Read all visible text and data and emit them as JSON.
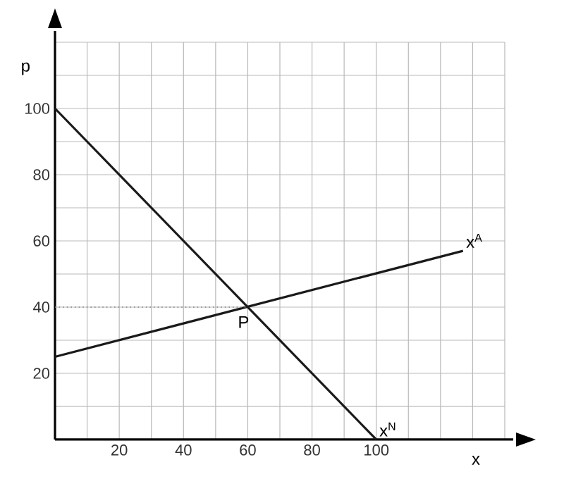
{
  "chart_data": {
    "type": "line",
    "xlabel": "x",
    "ylabel": "p",
    "xlim": [
      0,
      140
    ],
    "ylim": [
      0,
      120
    ],
    "xticks": [
      {
        "value": 10,
        "label": null
      },
      20,
      {
        "value": 30,
        "label": null
      },
      40,
      {
        "value": 50,
        "label": null
      },
      60,
      {
        "value": 70,
        "label": null
      },
      80,
      {
        "value": 90,
        "label": null
      },
      100,
      {
        "value": 110,
        "label": null
      },
      {
        "value": 120,
        "label": null
      },
      {
        "value": 130,
        "label": null
      },
      {
        "value": 140,
        "label": null
      }
    ],
    "yticks": [
      {
        "value": 10,
        "label": null
      },
      20,
      {
        "value": 30,
        "label": null
      },
      40,
      {
        "value": 50,
        "label": null
      },
      60,
      {
        "value": 70,
        "label": null
      },
      80,
      {
        "value": 90,
        "label": null
      },
      100,
      {
        "value": 110,
        "label": null
      },
      {
        "value": 120,
        "label": null
      }
    ],
    "grid": true,
    "marker": "none",
    "line_style": "solid",
    "series": [
      {
        "name": "x$^{N}$",
        "color": "#1a1a1a",
        "x": [
          0,
          100
        ],
        "values": [
          100,
          0
        ]
      },
      {
        "name": "x$^{A}$",
        "color": "#1a1a1a",
        "x": [
          0,
          127
        ],
        "values": [
          25,
          57
        ]
      },
      {
        "color": "#808080",
        "line_style": "dotted",
        "x": [
          0,
          60
        ],
        "values": [
          40,
          40
        ]
      }
    ],
    "annotations": [
      {
        "text": "P",
        "x": 60,
        "y": 40
      }
    ]
  }
}
